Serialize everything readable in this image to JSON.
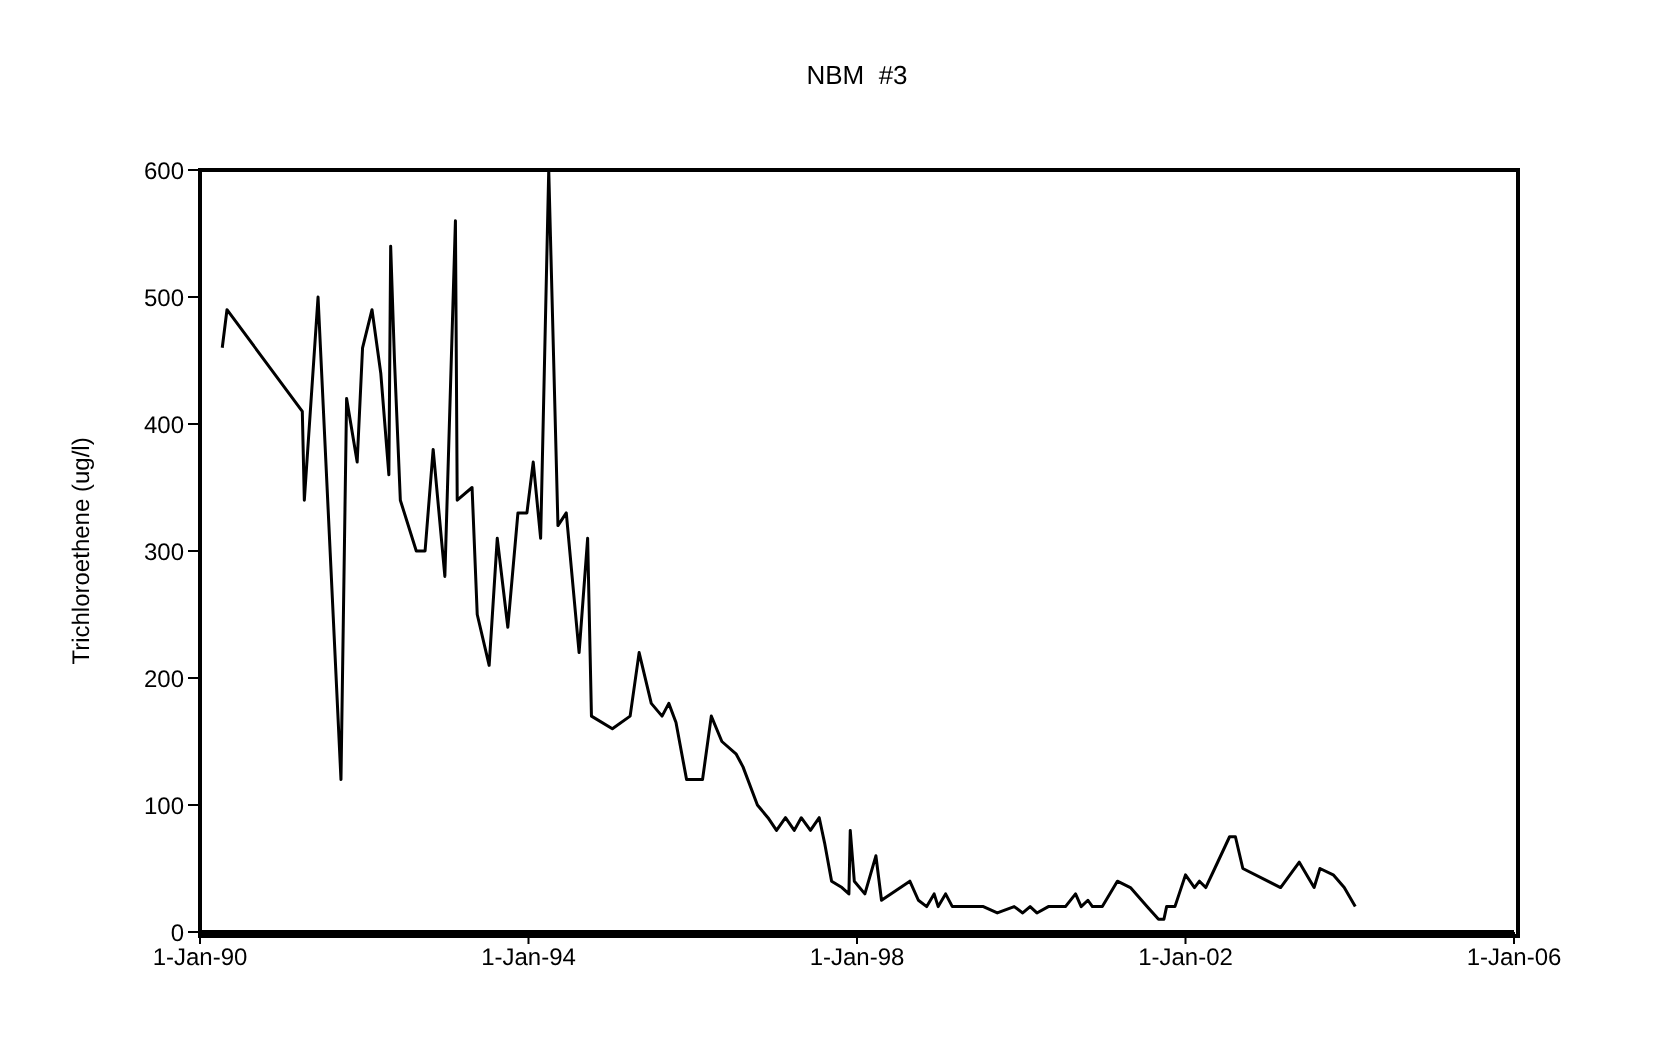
{
  "chart_data": {
    "type": "line",
    "title": "NBM  #3",
    "ylabel": "Trichloroethene (ug/l)",
    "x": [
      "1990-04-10",
      "1990-05-01",
      "1991-04-01",
      "1991-04-10",
      "1991-06-10",
      "1991-09-20",
      "1991-10-15",
      "1991-12-01",
      "1991-12-25",
      "1992-02-05",
      "1992-03-15",
      "1992-04-20",
      "1992-04-28",
      "1992-05-15",
      "1992-06-10",
      "1992-08-20",
      "1992-09-28",
      "1992-11-03",
      "1992-12-25",
      "1993-02-10",
      "1993-02-18",
      "1993-04-25",
      "1993-05-18",
      "1993-07-10",
      "1993-08-15",
      "1993-10-01",
      "1993-11-15",
      "1993-12-25",
      "1994-01-22",
      "1994-02-24",
      "1994-04-01",
      "1994-05-12",
      "1994-06-18",
      "1994-08-14",
      "1994-09-21",
      "1994-10-08",
      "1995-01-09",
      "1995-03-29",
      "1995-05-08",
      "1995-07-01",
      "1995-08-18",
      "1995-09-17",
      "1995-10-19",
      "1995-12-05",
      "1996-02-14",
      "1996-03-24",
      "1996-05-10",
      "1996-07-13",
      "1996-08-12",
      "1996-10-15",
      "1996-12-01",
      "1997-01-08",
      "1997-02-17",
      "1997-03-28",
      "1997-04-28",
      "1997-06-08",
      "1997-07-17",
      "1997-08-10",
      "1997-09-10",
      "1997-10-26",
      "1997-11-26",
      "1997-12-02",
      "1997-12-20",
      "1998-02-05",
      "1998-03-26",
      "1998-04-20",
      "1998-08-24",
      "1998-10-01",
      "1998-11-07",
      "1998-12-10",
      "1998-12-28",
      "1999-01-30",
      "1999-03-01",
      "1999-04-20",
      "1999-07-17",
      "1999-09-17",
      "1999-12-01",
      "2000-01-08",
      "2000-02-10",
      "2000-03-11",
      "2000-05-01",
      "2000-07-16",
      "2000-08-30",
      "2000-09-24",
      "2000-10-24",
      "2000-11-13",
      "2000-12-27",
      "2001-03-04",
      "2001-05-01",
      "2001-07-14",
      "2001-09-03",
      "2001-09-27",
      "2001-10-09",
      "2001-11-15",
      "2002-01-01",
      "2002-02-10",
      "2002-03-04",
      "2002-04-01",
      "2002-05-11",
      "2002-07-16",
      "2002-08-11",
      "2002-09-13",
      "2003-02-28",
      "2003-05-22",
      "2003-07-27",
      "2003-08-22",
      "2003-10-20",
      "2003-12-08",
      "2004-01-26"
    ],
    "series": [
      {
        "color": "#000000",
        "values": [
          460,
          490,
          410,
          340,
          500,
          120,
          420,
          370,
          460,
          490,
          440,
          360,
          540,
          450,
          340,
          300,
          300,
          380,
          280,
          560,
          340,
          350,
          250,
          210,
          310,
          240,
          330,
          330,
          370,
          310,
          600,
          320,
          330,
          220,
          310,
          170,
          160,
          170,
          220,
          180,
          170,
          180,
          165,
          120,
          120,
          170,
          150,
          140,
          130,
          100,
          90,
          80,
          90,
          80,
          90,
          80,
          90,
          70,
          40,
          35,
          30,
          80,
          40,
          30,
          60,
          25,
          40,
          25,
          20,
          30,
          20,
          30,
          20,
          20,
          20,
          15,
          20,
          15,
          20,
          15,
          20,
          20,
          30,
          20,
          25,
          20,
          20,
          40,
          35,
          20,
          10,
          10,
          20,
          20,
          45,
          35,
          40,
          35,
          50,
          75,
          75,
          50,
          35,
          55,
          35,
          50,
          45,
          35,
          20
        ]
      }
    ],
    "xlim": [
      "1990-01-01",
      "2006-01-01"
    ],
    "xticks": [
      {
        "value": "1990-01-01",
        "label": "1-Jan-90"
      },
      {
        "value": "1994-01-01",
        "label": "1-Jan-94"
      },
      {
        "value": "1998-01-01",
        "label": "1-Jan-98"
      },
      {
        "value": "2002-01-01",
        "label": "1-Jan-02"
      },
      {
        "value": "2006-01-01",
        "label": "1-Jan-06"
      }
    ],
    "ylim": [
      0,
      600
    ],
    "yticks": [
      0,
      100,
      200,
      300,
      400,
      500,
      600
    ]
  }
}
